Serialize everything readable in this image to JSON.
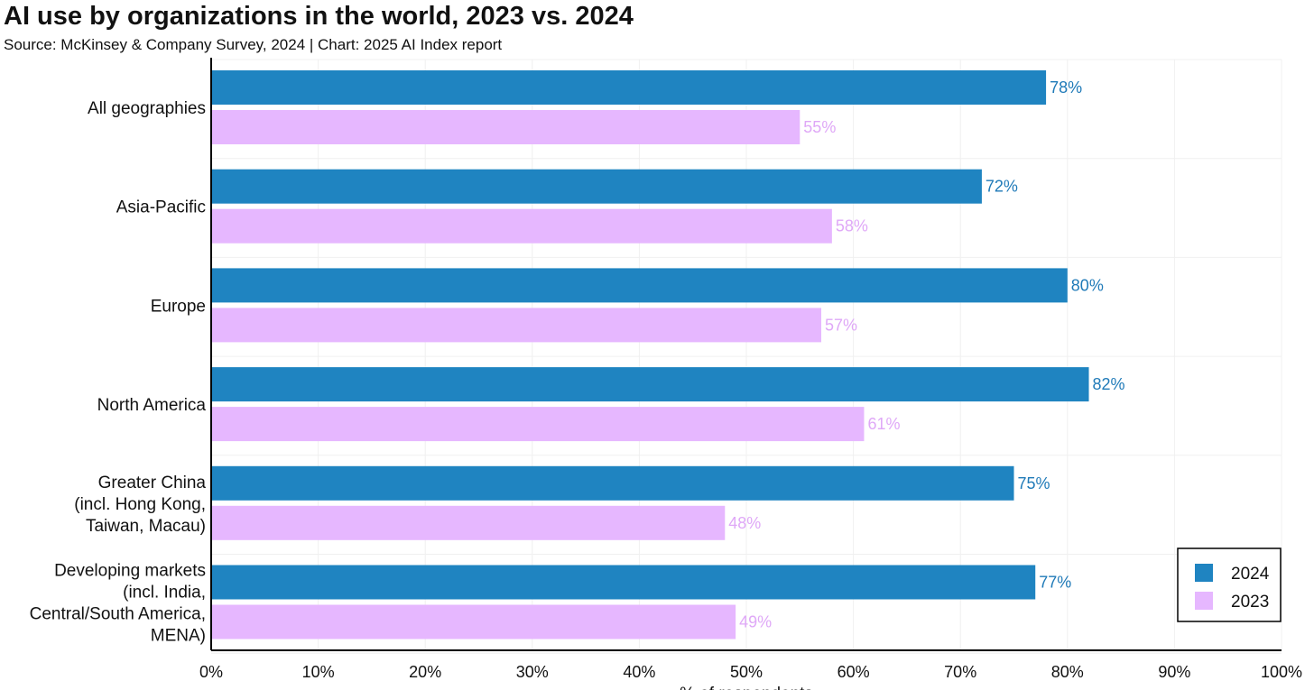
{
  "chart_data": {
    "type": "bar",
    "orientation": "horizontal",
    "title": "AI use by organizations in the world, 2023 vs. 2024",
    "subtitle": "Source: McKinsey & Company Survey, 2024 | Chart: 2025 AI Index report",
    "xlabel": "% of respondents",
    "ylabel": "",
    "categories": [
      [
        "All geographies"
      ],
      [
        "Asia-Pacific"
      ],
      [
        "Europe"
      ],
      [
        "North America"
      ],
      [
        "Greater China",
        "(incl. Hong Kong,",
        "Taiwan, Macau)"
      ],
      [
        "Developing markets",
        "(incl. India,",
        "Central/South America,",
        "MENA)"
      ]
    ],
    "series": [
      {
        "name": "2024",
        "color": "#1f84c1",
        "label_color": "#1f7ab8",
        "values": [
          78,
          72,
          80,
          82,
          75,
          77
        ]
      },
      {
        "name": "2023",
        "color": "#e6b7ff",
        "label_color": "#dfa8f7",
        "values": [
          55,
          58,
          57,
          61,
          48,
          49
        ]
      }
    ],
    "xlim": [
      0,
      100
    ],
    "xticks": [
      0,
      10,
      20,
      30,
      40,
      50,
      60,
      70,
      80,
      90,
      100
    ],
    "tick_suffix": "%",
    "value_suffix": "%",
    "grid": true,
    "legend_position": "bottom-right"
  }
}
